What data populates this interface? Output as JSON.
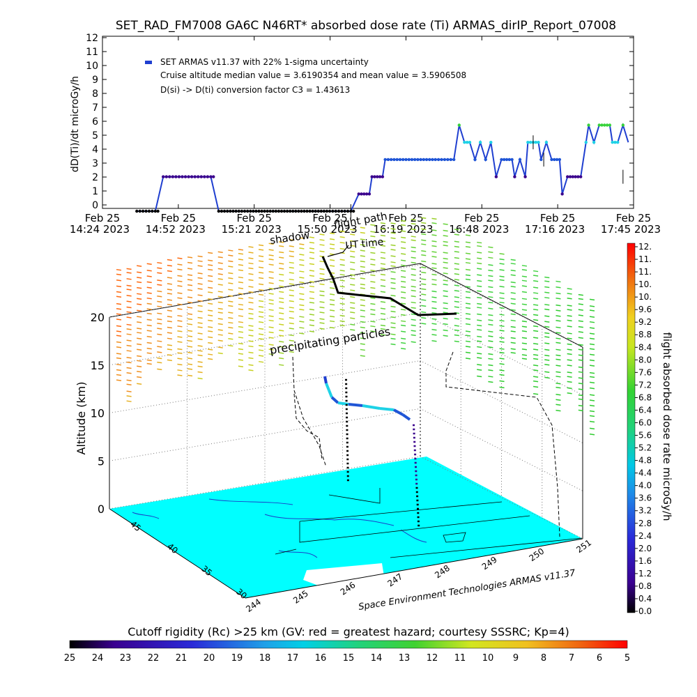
{
  "header": {
    "title": "SET_RAD_FM7008  GA6C N46RT* absorbed dose rate (Ti) ARMAS_dirIP_Report_07008"
  },
  "top_chart": {
    "ylabel": "dD(Ti)/dt microGy/h",
    "legend": "SET ARMAS v11.37 with 22% 1-sigma uncertainty",
    "note1": "Cruise altitude median value = 3.6190354 and mean value = 3.5906508",
    "note2": "D(si) -> D(ti) conversion factor C3 = 1.43613"
  },
  "main_chart": {
    "zlabel": "Altitude (km)",
    "label_shadow": "shadow",
    "label_flightpath": "flight path",
    "label_ut": "UT time",
    "label_precip": "precipitating particles",
    "credit": "Space Environment Technologies ARMAS v11.37",
    "colorbar_label": "flight absorbed dose rate microGy/h",
    "cutoff_label": "Cutoff rigidity (Rc) >25 km (GV: red = greatest hazard; courtesy SSSRC; Kp=4)"
  },
  "colors": {
    "dark": "#000000",
    "purple": "#3a008c",
    "blue": "#1f55d6",
    "cyan": "#1ed2e6",
    "green": "#36d23a",
    "ground": "#00ffff"
  },
  "chart_data": [
    {
      "type": "line",
      "name": "dose_rate_timeseries",
      "ylim": [
        0,
        12
      ],
      "yticks": [
        "0",
        "1",
        "2",
        "3",
        "4",
        "5",
        "6",
        "7",
        "8",
        "9",
        "10",
        "11",
        "12"
      ],
      "xtick_labels": [
        [
          "Feb 25",
          "14:24 2023"
        ],
        [
          "Feb 25",
          "14:52 2023"
        ],
        [
          "Feb 25",
          "15:21 2023"
        ],
        [
          "Feb 25",
          "15:50 2023"
        ],
        [
          "Feb 25",
          "16:19 2023"
        ],
        [
          "Feb 25",
          "16:48 2023"
        ],
        [
          "Feb 25",
          "17:16 2023"
        ],
        [
          "Feb 25",
          "17:45 2023"
        ]
      ],
      "xlim_minutes": [
        864,
        1065
      ],
      "points": [
        [
          877,
          0
        ],
        [
          884,
          0
        ],
        [
          887,
          2.4
        ],
        [
          893,
          2.4
        ],
        [
          899,
          2.4
        ],
        [
          905,
          2.4
        ],
        [
          908,
          0
        ],
        [
          920,
          0
        ],
        [
          935,
          0
        ],
        [
          950,
          0
        ],
        [
          958,
          0
        ],
        [
          961,
          1.2
        ],
        [
          965,
          1.2
        ],
        [
          966,
          2.4
        ],
        [
          970,
          2.4
        ],
        [
          971,
          3.6
        ],
        [
          980,
          3.6
        ],
        [
          990,
          3.6
        ],
        [
          997,
          3.6
        ],
        [
          999,
          6.0
        ],
        [
          1001,
          4.8
        ],
        [
          1003,
          4.8
        ],
        [
          1005,
          3.6
        ],
        [
          1007,
          4.8
        ],
        [
          1009,
          3.6
        ],
        [
          1011,
          4.8
        ],
        [
          1013,
          2.4
        ],
        [
          1015,
          3.6
        ],
        [
          1019,
          3.6
        ],
        [
          1020,
          2.4
        ],
        [
          1022,
          3.6
        ],
        [
          1024,
          2.4
        ],
        [
          1025,
          4.8
        ],
        [
          1029,
          4.8
        ],
        [
          1030,
          3.6
        ],
        [
          1032,
          4.8
        ],
        [
          1034,
          3.6
        ],
        [
          1037,
          3.6
        ],
        [
          1038,
          1.2
        ],
        [
          1040,
          2.4
        ],
        [
          1045,
          2.4
        ],
        [
          1047,
          4.8
        ],
        [
          1048,
          6.0
        ],
        [
          1050,
          4.8
        ],
        [
          1052,
          6.0
        ],
        [
          1056,
          6.0
        ],
        [
          1057,
          4.8
        ],
        [
          1059,
          4.8
        ],
        [
          1061,
          6.0
        ],
        [
          1063,
          4.8
        ]
      ]
    },
    {
      "type": "colorbar",
      "name": "dose_rate_scale",
      "ticks": [
        "0.0",
        "0.4",
        "0.8",
        "1.2",
        "1.6",
        "2.0",
        "2.4",
        "2.8",
        "3.2",
        "3.6",
        "4.0",
        "4.4",
        "4.8",
        "5.2",
        "5.6",
        "6.0",
        "6.4",
        "6.8",
        "7.2",
        "7.6",
        "8.0",
        "8.4",
        "8.8",
        "9.2",
        "9.6",
        "10.",
        "10.",
        "11.",
        "11.",
        "12."
      ]
    },
    {
      "type": "colorbar",
      "name": "cutoff_rigidity_scale",
      "ticks": [
        "25",
        "24",
        "23",
        "22",
        "21",
        "20",
        "19",
        "18",
        "17",
        "16",
        "15",
        "14",
        "13",
        "12",
        "11",
        "10",
        "9",
        "8",
        "7",
        "6",
        "5"
      ]
    },
    {
      "type": "scatter",
      "name": "flight_3d",
      "zticks": [
        "0",
        "5",
        "10",
        "15",
        "20"
      ],
      "lat_ticks": [
        "30",
        "35",
        "40",
        "45"
      ],
      "lon_ticks": [
        "244",
        "245",
        "246",
        "247",
        "248",
        "249",
        "250",
        "251"
      ]
    }
  ]
}
